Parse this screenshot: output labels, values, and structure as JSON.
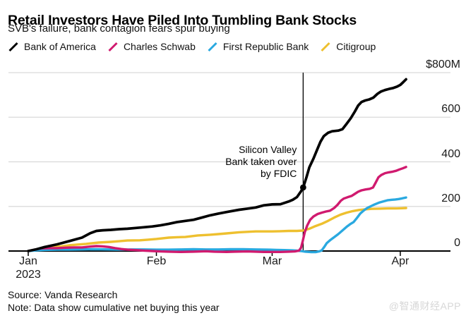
{
  "header": {
    "title": "Retail Investors Have Piled Into Tumbling Bank Stocks",
    "subtitle": "SVB's failure, bank contagion fears spur buying"
  },
  "chart_data": {
    "type": "line",
    "title": "Retail Investors Have Piled Into Tumbling Bank Stocks",
    "subtitle": "SVB's failure, bank contagion fears spur buying",
    "unit": "USD millions, cumulative net buying this year",
    "legend_position": "top",
    "grid": true,
    "x_axis": {
      "ticks": [
        {
          "label": "Jan",
          "sublabel": "2023",
          "day": 0
        },
        {
          "label": "Feb",
          "day": 31
        },
        {
          "label": "Mar",
          "day": 59
        },
        {
          "label": "Apr",
          "day": 90
        }
      ]
    },
    "y_axis": {
      "range": [
        0,
        800
      ],
      "ticks": [
        {
          "label": "$800M",
          "value": 800
        },
        {
          "label": "600",
          "value": 600
        },
        {
          "label": "400",
          "value": 400
        },
        {
          "label": "200",
          "value": 200
        },
        {
          "label": "0",
          "value": 0
        }
      ]
    },
    "event": {
      "day": 66.5,
      "lines": [
        "Silicon Valley",
        "Bank taken over",
        "by FDIC"
      ],
      "marker_value": 285
    },
    "series": [
      {
        "name": "Bank of America",
        "color": "#000000",
        "points": [
          [
            0,
            0
          ],
          [
            2,
            8
          ],
          [
            4,
            18
          ],
          [
            7,
            30
          ],
          [
            10,
            45
          ],
          [
            13,
            60
          ],
          [
            15,
            80
          ],
          [
            16.5,
            90
          ],
          [
            18,
            93
          ],
          [
            20,
            95
          ],
          [
            22,
            98
          ],
          [
            24,
            100
          ],
          [
            27,
            105
          ],
          [
            30,
            110
          ],
          [
            32,
            115
          ],
          [
            34,
            122
          ],
          [
            36,
            130
          ],
          [
            38,
            135
          ],
          [
            40,
            140
          ],
          [
            42,
            150
          ],
          [
            44,
            160
          ],
          [
            46,
            168
          ],
          [
            48,
            175
          ],
          [
            51,
            185
          ],
          [
            53,
            190
          ],
          [
            55,
            195
          ],
          [
            57,
            205
          ],
          [
            59,
            209
          ],
          [
            61,
            210
          ],
          [
            63,
            222
          ],
          [
            64,
            230
          ],
          [
            65,
            242
          ],
          [
            66,
            268
          ],
          [
            66.5,
            285
          ],
          [
            67.3,
            330
          ],
          [
            68,
            375
          ],
          [
            69,
            415
          ],
          [
            70,
            460
          ],
          [
            70.7,
            490
          ],
          [
            71.5,
            515
          ],
          [
            72.5,
            530
          ],
          [
            73.5,
            537
          ],
          [
            75,
            540
          ],
          [
            76,
            546
          ],
          [
            77,
            570
          ],
          [
            78,
            595
          ],
          [
            79,
            625
          ],
          [
            79.8,
            652
          ],
          [
            80.6,
            668
          ],
          [
            81.5,
            675
          ],
          [
            82.5,
            680
          ],
          [
            83.5,
            688
          ],
          [
            84.5,
            705
          ],
          [
            85.3,
            715
          ],
          [
            86.3,
            722
          ],
          [
            87.3,
            727
          ],
          [
            88.3,
            731
          ],
          [
            89.2,
            737
          ],
          [
            90,
            745
          ],
          [
            90.7,
            757
          ],
          [
            91.4,
            770
          ]
        ]
      },
      {
        "name": "Charles Schwab",
        "color": "#d01a6f",
        "points": [
          [
            0,
            0
          ],
          [
            2,
            8
          ],
          [
            3,
            12
          ],
          [
            5,
            13
          ],
          [
            7,
            13
          ],
          [
            9,
            15
          ],
          [
            11,
            16
          ],
          [
            13,
            16
          ],
          [
            15,
            20
          ],
          [
            16.5,
            22
          ],
          [
            18,
            21
          ],
          [
            19.5,
            18
          ],
          [
            21,
            13
          ],
          [
            22.5,
            9
          ],
          [
            24,
            6
          ],
          [
            26,
            4
          ],
          [
            28,
            2
          ],
          [
            30,
            0
          ],
          [
            32,
            -2
          ],
          [
            34,
            -3
          ],
          [
            37,
            -4
          ],
          [
            40,
            -3
          ],
          [
            43,
            -1
          ],
          [
            45,
            -3
          ],
          [
            48,
            -4
          ],
          [
            50,
            -3
          ],
          [
            53,
            -2
          ],
          [
            55,
            -3
          ],
          [
            57,
            -4
          ],
          [
            59,
            -4
          ],
          [
            61,
            -4
          ],
          [
            63,
            -3
          ],
          [
            64.5,
            -2
          ],
          [
            65.5,
            2
          ],
          [
            66,
            15
          ],
          [
            66.4,
            45
          ],
          [
            66.9,
            85
          ],
          [
            67.5,
            115
          ],
          [
            68.2,
            140
          ],
          [
            69,
            155
          ],
          [
            70,
            166
          ],
          [
            71,
            172
          ],
          [
            72,
            177
          ],
          [
            73,
            181
          ],
          [
            74,
            193
          ],
          [
            74.8,
            207
          ],
          [
            75.6,
            225
          ],
          [
            76.3,
            235
          ],
          [
            77.2,
            241
          ],
          [
            78.2,
            247
          ],
          [
            79,
            256
          ],
          [
            79.8,
            266
          ],
          [
            80.6,
            272
          ],
          [
            81.6,
            276
          ],
          [
            82.6,
            279
          ],
          [
            83.4,
            285
          ],
          [
            84,
            305
          ],
          [
            84.7,
            330
          ],
          [
            85.4,
            341
          ],
          [
            86.3,
            349
          ],
          [
            87.2,
            353
          ],
          [
            88.2,
            356
          ],
          [
            89,
            360
          ],
          [
            89.8,
            366
          ],
          [
            90.6,
            371
          ],
          [
            91.4,
            377
          ]
        ]
      },
      {
        "name": "First Republic Bank",
        "color": "#2aa9e0",
        "points": [
          [
            0,
            0
          ],
          [
            2,
            3
          ],
          [
            4,
            5
          ],
          [
            7,
            6
          ],
          [
            10,
            6
          ],
          [
            13,
            7
          ],
          [
            16,
            8
          ],
          [
            19,
            7
          ],
          [
            22,
            6
          ],
          [
            25,
            7
          ],
          [
            28,
            7
          ],
          [
            31,
            6
          ],
          [
            34,
            6
          ],
          [
            37,
            7
          ],
          [
            40,
            8
          ],
          [
            43,
            7
          ],
          [
            46,
            7
          ],
          [
            49,
            8
          ],
          [
            52,
            8
          ],
          [
            55,
            7
          ],
          [
            58,
            6
          ],
          [
            60,
            5
          ],
          [
            62,
            4
          ],
          [
            64,
            3
          ],
          [
            66,
            0
          ],
          [
            67,
            -3
          ],
          [
            68.5,
            -5
          ],
          [
            69.5,
            -5
          ],
          [
            70.5,
            -1
          ],
          [
            71,
            3
          ],
          [
            71.6,
            18
          ],
          [
            72.2,
            35
          ],
          [
            73,
            48
          ],
          [
            74,
            62
          ],
          [
            75,
            76
          ],
          [
            76,
            92
          ],
          [
            77,
            108
          ],
          [
            78,
            122
          ],
          [
            78.7,
            130
          ],
          [
            79.5,
            148
          ],
          [
            80.3,
            168
          ],
          [
            81.2,
            182
          ],
          [
            82,
            193
          ],
          [
            83,
            202
          ],
          [
            83.8,
            209
          ],
          [
            85,
            218
          ],
          [
            86,
            223
          ],
          [
            87,
            228
          ],
          [
            88,
            230
          ],
          [
            88.8,
            231
          ],
          [
            89.6,
            233
          ],
          [
            90.4,
            236
          ],
          [
            91.4,
            240
          ]
        ]
      },
      {
        "name": "Citigroup",
        "color": "#eec02f",
        "points": [
          [
            0,
            0
          ],
          [
            2,
            7
          ],
          [
            4,
            14
          ],
          [
            6,
            18
          ],
          [
            8,
            21
          ],
          [
            10,
            26
          ],
          [
            12,
            29
          ],
          [
            14,
            32
          ],
          [
            17,
            38
          ],
          [
            20,
            41
          ],
          [
            22,
            44
          ],
          [
            24,
            47
          ],
          [
            27,
            48
          ],
          [
            29,
            51
          ],
          [
            31,
            54
          ],
          [
            34,
            60
          ],
          [
            36,
            62
          ],
          [
            38,
            63
          ],
          [
            41,
            70
          ],
          [
            44,
            73
          ],
          [
            46,
            76
          ],
          [
            48,
            79
          ],
          [
            51,
            84
          ],
          [
            53,
            86
          ],
          [
            55,
            88
          ],
          [
            57,
            88
          ],
          [
            59,
            88
          ],
          [
            61,
            89
          ],
          [
            63,
            90
          ],
          [
            65,
            90
          ],
          [
            66.6,
            92
          ],
          [
            68,
            100
          ],
          [
            69.5,
            112
          ],
          [
            71,
            122
          ],
          [
            72.5,
            135
          ],
          [
            74,
            150
          ],
          [
            75.5,
            163
          ],
          [
            77,
            172
          ],
          [
            78.5,
            179
          ],
          [
            80,
            184
          ],
          [
            81.5,
            187
          ],
          [
            83,
            189
          ],
          [
            85,
            190
          ],
          [
            87,
            191
          ],
          [
            89,
            191
          ],
          [
            90.4,
            192
          ],
          [
            91.4,
            193
          ]
        ]
      }
    ]
  },
  "footer": {
    "source": "Source: Vanda Research",
    "note": "Note: Data show cumulative net buying this year"
  },
  "watermark": "@智通财经APP",
  "colors": {
    "grid": "#d9d9d9",
    "axis": "#000000",
    "event_line": "#000000"
  }
}
